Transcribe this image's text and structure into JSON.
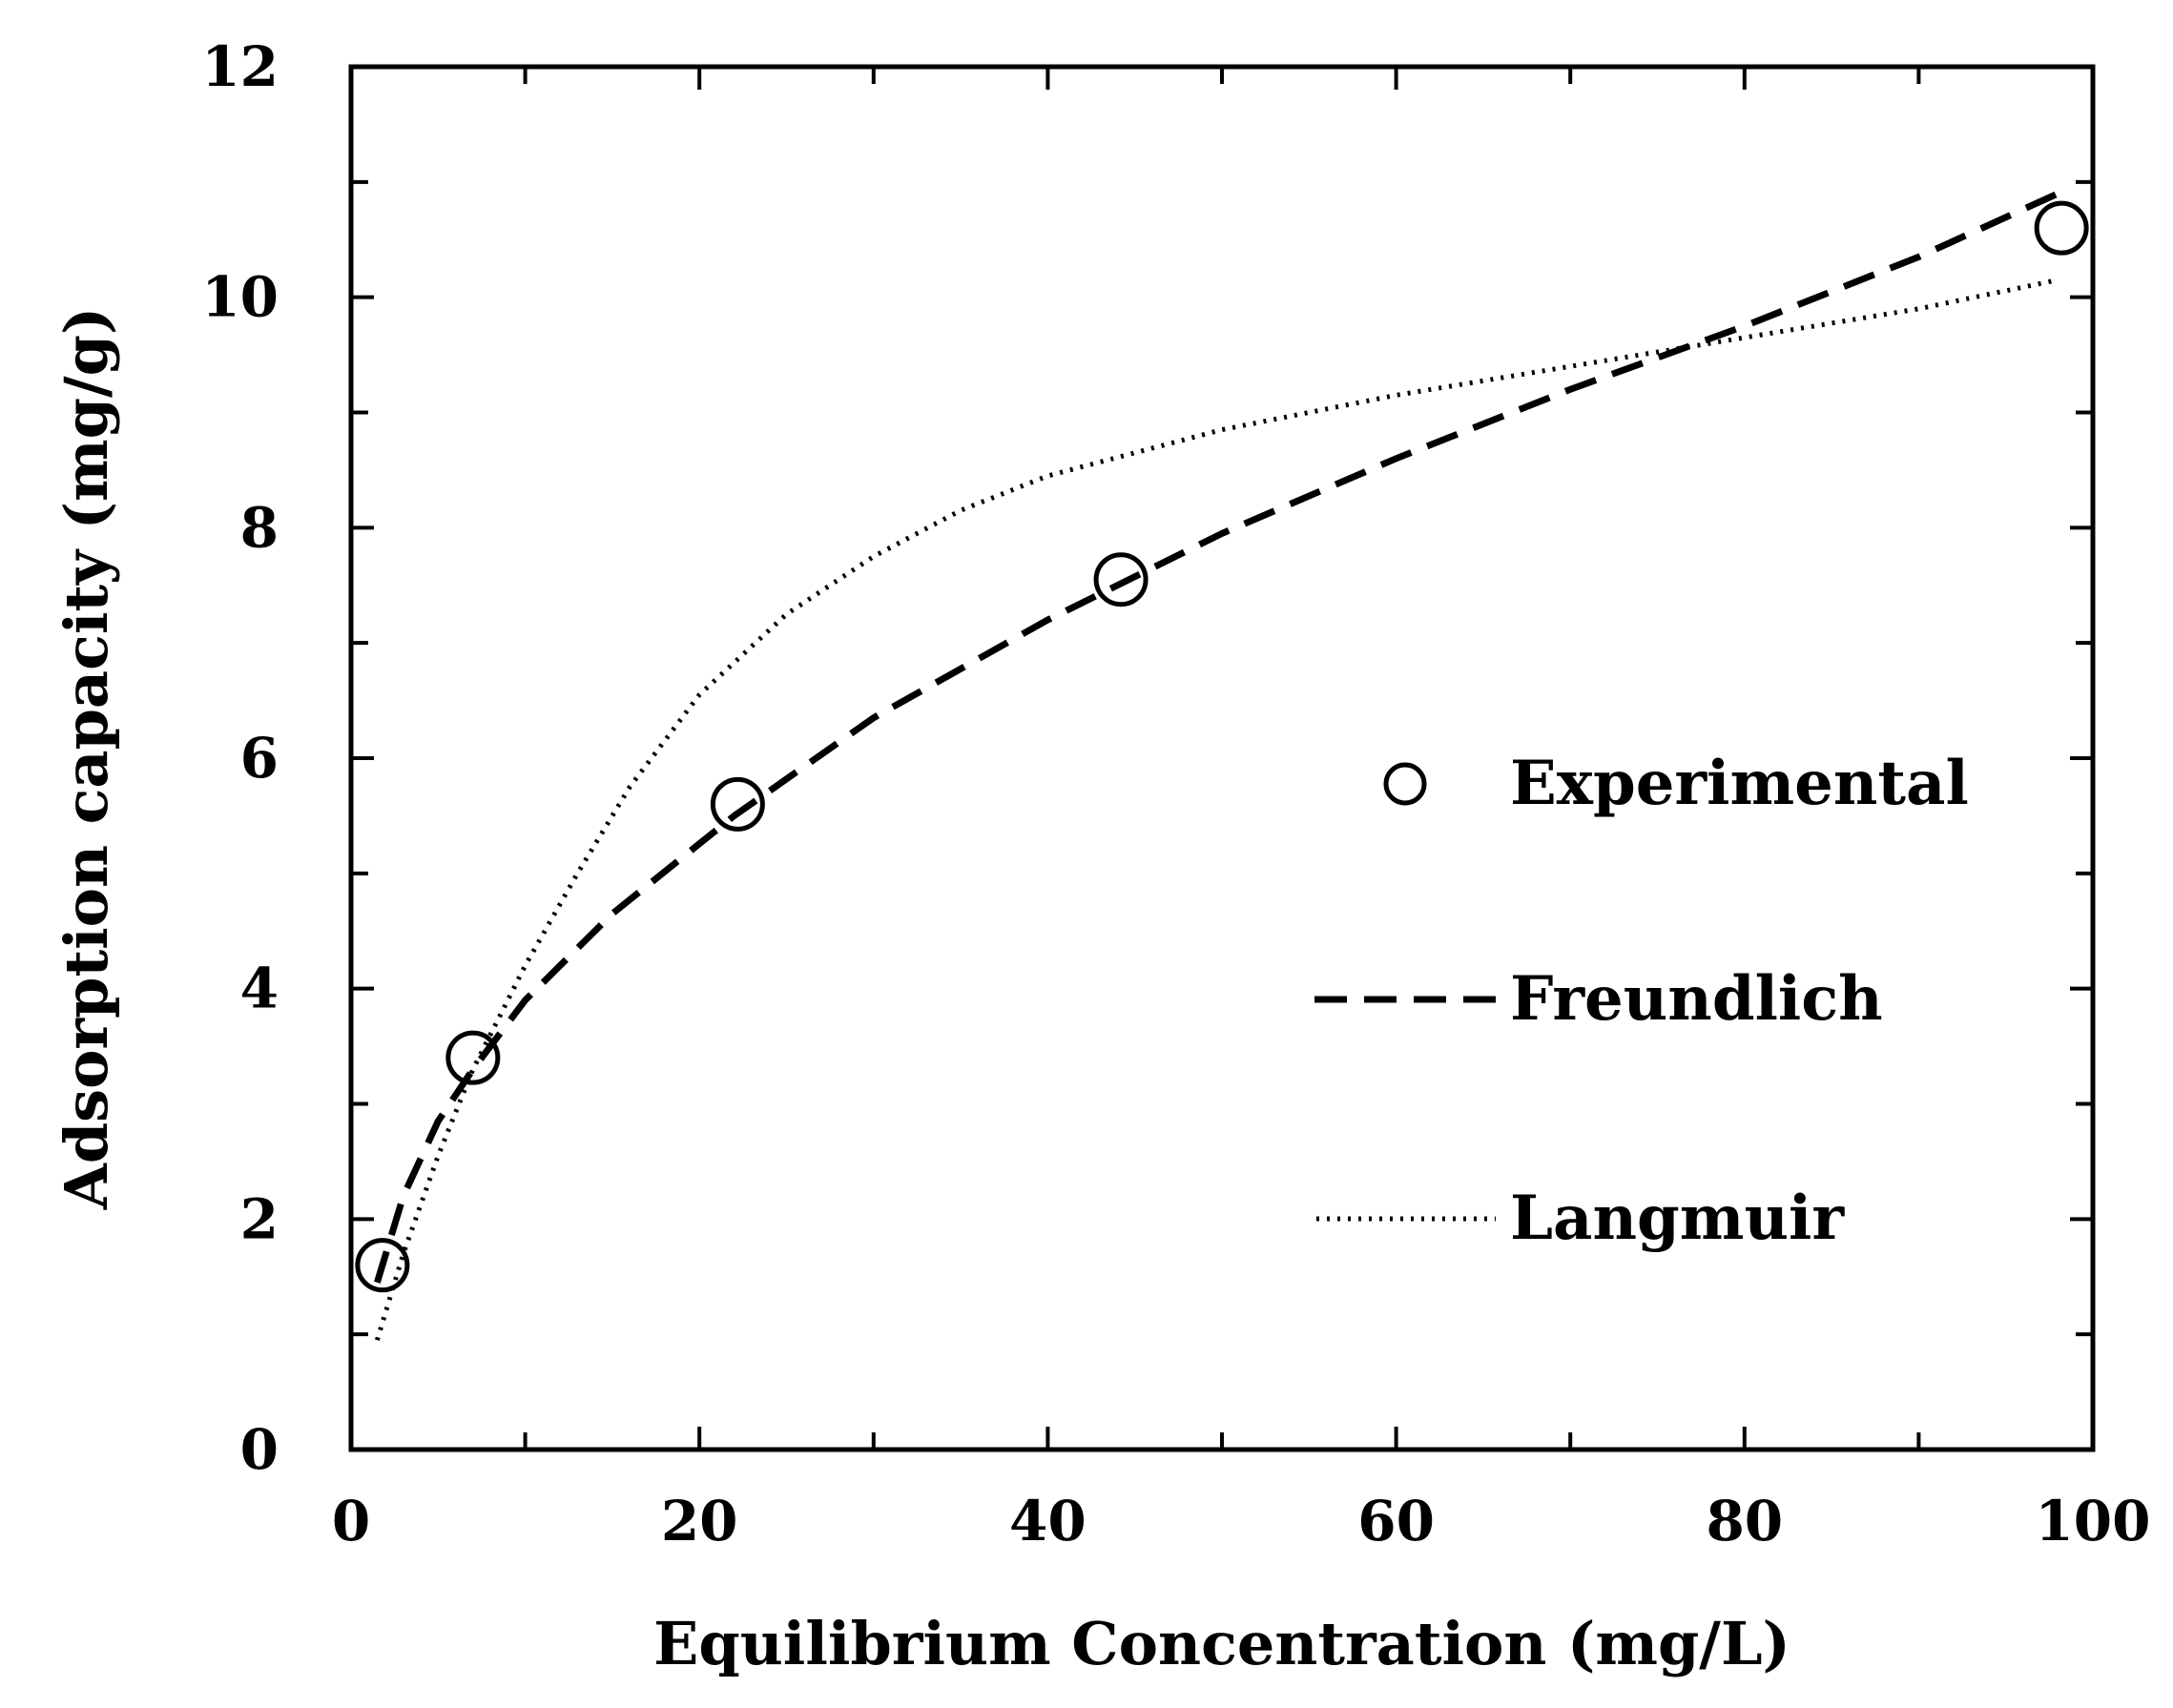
{
  "chart_data": {
    "type": "scatter",
    "title": "",
    "xlabel": "Equilibrium Concentration (mg/L)",
    "ylabel": "Adsorption capacity (mg/g)",
    "xlim": [
      0,
      100
    ],
    "ylim": [
      0,
      12
    ],
    "x_ticks": [
      "0",
      "20",
      "40",
      "60",
      "80",
      "100"
    ],
    "y_ticks": [
      "0",
      "2",
      "4",
      "6",
      "8",
      "10",
      "12"
    ],
    "grid": false,
    "legend_position": "right",
    "series": [
      {
        "name": "Experimental",
        "style": "open-circle",
        "x": [
          1.8,
          7.0,
          22.2,
          44.2,
          98.2
        ],
        "y": [
          1.6,
          3.4,
          5.6,
          7.55,
          10.6
        ]
      },
      {
        "name": "Freundlich",
        "style": "dashed",
        "x": [
          1.5,
          3,
          5,
          7,
          10,
          15,
          22,
          30,
          40,
          50,
          60,
          70,
          80,
          90,
          98
        ],
        "y": [
          1.45,
          2.2,
          2.85,
          3.3,
          3.9,
          4.65,
          5.5,
          6.35,
          7.2,
          7.95,
          8.6,
          9.2,
          9.75,
          10.35,
          10.9
        ]
      },
      {
        "name": "Langmuir",
        "style": "dotted",
        "x": [
          1.5,
          3,
          5,
          7,
          10,
          13,
          16,
          20,
          25,
          30,
          35,
          40,
          50,
          60,
          70,
          80,
          90,
          98
        ],
        "y": [
          0.95,
          1.7,
          2.55,
          3.3,
          4.2,
          5.0,
          5.75,
          6.55,
          7.25,
          7.75,
          8.15,
          8.45,
          8.85,
          9.15,
          9.4,
          9.65,
          9.9,
          10.15
        ]
      }
    ]
  }
}
